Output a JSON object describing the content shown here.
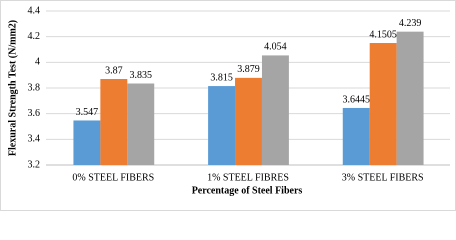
{
  "chart_data": {
    "type": "bar",
    "y_label": "Flexural Strength Test (N/mm2)",
    "x_label": "Percentage of Steel Fibers",
    "categories": [
      "0% STEEL FIBERS",
      "1% STEEL FIBRES",
      "3% STEEL FIBERS"
    ],
    "series": [
      {
        "color": "#5b9bd5",
        "values": [
          3.547,
          3.815,
          3.6445
        ]
      },
      {
        "color": "#ed7d31",
        "values": [
          3.87,
          3.879,
          4.1505
        ]
      },
      {
        "color": "#a5a5a5",
        "values": [
          3.835,
          4.054,
          4.239
        ]
      }
    ],
    "ylim": [
      3.2,
      4.4
    ],
    "yticks": [
      3.2,
      3.4,
      3.6,
      3.8,
      4,
      4.2,
      4.4
    ],
    "grid": true
  }
}
